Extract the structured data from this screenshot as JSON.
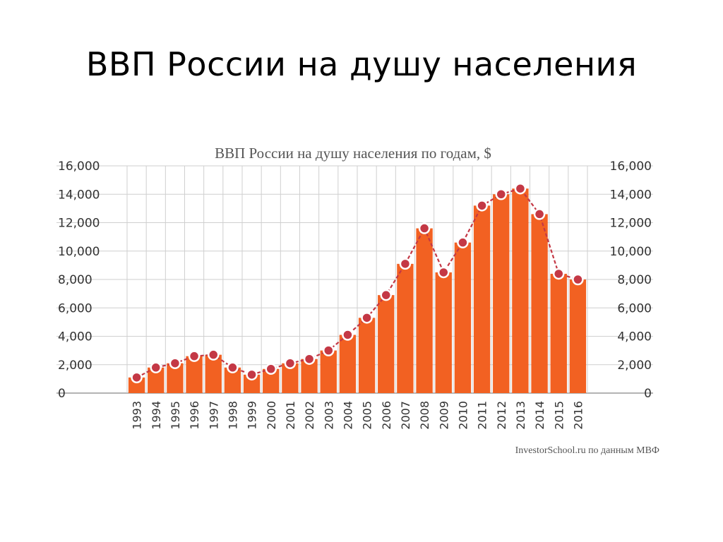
{
  "slide": {
    "title": "ВВП  России на душу населения"
  },
  "chart_data": {
    "type": "bar",
    "title": "ВВП России на душу населения по годам, $",
    "source": "InvestorSchool.ru по данным МВФ",
    "categories": [
      "1993",
      "1994",
      "1995",
      "1996",
      "1997",
      "1998",
      "1999",
      "2000",
      "2001",
      "2002",
      "2003",
      "2004",
      "2005",
      "2006",
      "2007",
      "2008",
      "2009",
      "2010",
      "2011",
      "2012",
      "2013",
      "2014",
      "2015",
      "2016"
    ],
    "values": [
      1100,
      1800,
      2100,
      2600,
      2700,
      1800,
      1300,
      1700,
      2100,
      2400,
      3000,
      4100,
      5300,
      6900,
      9100,
      11600,
      8500,
      10600,
      13200,
      14000,
      14400,
      12600,
      8400,
      8000
    ],
    "yticks": [
      "0",
      "2,000",
      "4,000",
      "6,000",
      "8,000",
      "10,000",
      "12,000",
      "14,000",
      "16,000"
    ],
    "ylim": [
      0,
      16000
    ],
    "grid": true,
    "overlay": "line-with-markers",
    "bar_color": "#f26122",
    "line_color": "#c43845"
  }
}
